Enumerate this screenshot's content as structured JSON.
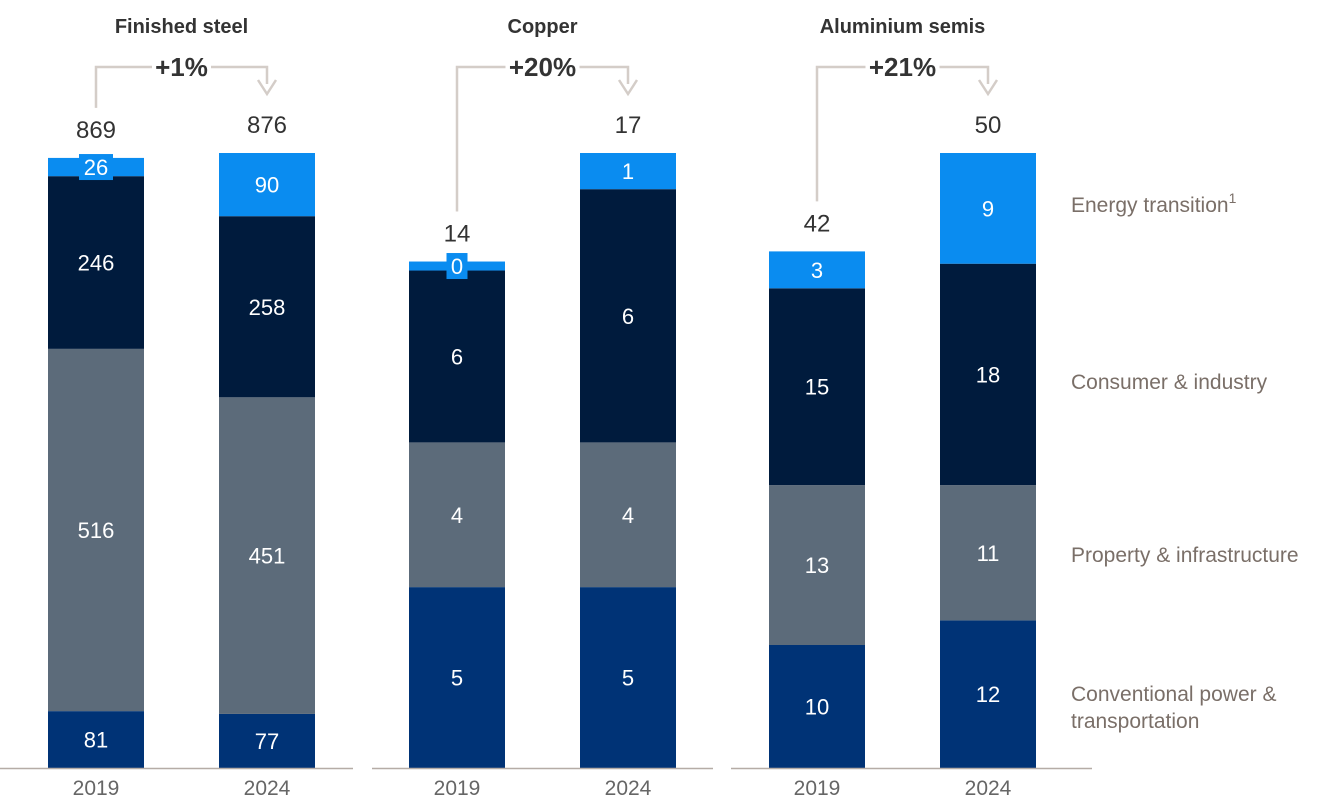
{
  "chart_data": [
    {
      "type": "bar",
      "stacked": true,
      "title": "Finished steel",
      "growth_label": "+1%",
      "categories": [
        "2019",
        "2024"
      ],
      "totals": [
        869,
        876
      ],
      "series": [
        {
          "name": "Conventional power & transportation",
          "values": [
            81,
            77
          ]
        },
        {
          "name": "Property & infrastructure",
          "values": [
            516,
            451
          ]
        },
        {
          "name": "Consumer & industry",
          "values": [
            246,
            258
          ]
        },
        {
          "name": "Energy transition1",
          "values": [
            26,
            90
          ]
        }
      ]
    },
    {
      "type": "bar",
      "stacked": true,
      "title": "Copper",
      "growth_label": "+20%",
      "categories": [
        "2019",
        "2024"
      ],
      "totals": [
        14,
        17
      ],
      "series": [
        {
          "name": "Conventional power & transportation",
          "values": [
            5,
            5
          ]
        },
        {
          "name": "Property & infrastructure",
          "values": [
            4,
            4
          ]
        },
        {
          "name": "Consumer & industry",
          "values": [
            6,
            6
          ]
        },
        {
          "name": "Energy transition1",
          "values": [
            0,
            1
          ]
        }
      ]
    },
    {
      "type": "bar",
      "stacked": true,
      "title": "Aluminium semis",
      "growth_label": "+21%",
      "categories": [
        "2019",
        "2024"
      ],
      "totals": [
        42,
        50
      ],
      "series": [
        {
          "name": "Conventional power & transportation",
          "values": [
            10,
            12
          ]
        },
        {
          "name": "Property & infrastructure",
          "values": [
            13,
            11
          ]
        },
        {
          "name": "Consumer & industry",
          "values": [
            15,
            18
          ]
        },
        {
          "name": "Energy transition1",
          "values": [
            3,
            9
          ]
        }
      ]
    }
  ],
  "legend": {
    "placement": "right",
    "items": [
      {
        "label": "Energy transition",
        "sup": "1",
        "color": "#0a8cf0"
      },
      {
        "label": "Consumer & industry",
        "color": "#001b3d"
      },
      {
        "label": "Property & infrastructure",
        "color": "#5c6b7a"
      },
      {
        "label": "Conventional power & transportation",
        "color": "#003376"
      }
    ]
  },
  "colors": {
    "energy": "#0a8cf0",
    "consumer": "#001b3d",
    "property": "#5c6b7a",
    "conventional": "#003376",
    "bracket": "#d4cdc8",
    "axis": "#b5aca6"
  }
}
